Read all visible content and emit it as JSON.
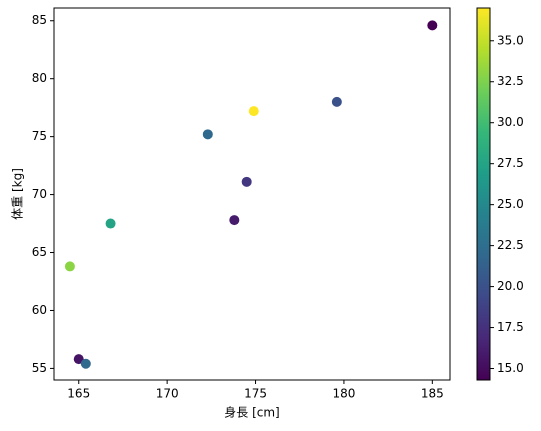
{
  "chart_data": {
    "type": "scatter",
    "xlabel": "身長 [cm]",
    "ylabel": "体重 [kg]",
    "x": [
      185.0,
      179.6,
      174.9,
      172.3,
      174.5,
      173.8,
      166.8,
      164.5,
      165.0,
      165.4
    ],
    "y": [
      84.6,
      78.0,
      77.2,
      75.2,
      71.1,
      67.8,
      67.5,
      63.8,
      55.8,
      55.4
    ],
    "c": [
      14.3,
      20.0,
      37.0,
      22.0,
      18.0,
      16.0,
      27.5,
      33.0,
      15.5,
      22.0
    ],
    "colormap": "viridis",
    "xlim": [
      163.6,
      186.0
    ],
    "xticks": [
      165,
      170,
      175,
      180,
      185
    ],
    "ylim": [
      54.0,
      86.1
    ],
    "yticks": [
      55,
      60,
      65,
      70,
      75,
      80,
      85
    ],
    "clim": [
      14.3,
      37.0
    ],
    "cticks": [
      {
        "value": 15,
        "label": "15.0"
      },
      {
        "value": 17.5,
        "label": "17.5"
      },
      {
        "value": 20,
        "label": "20.0"
      },
      {
        "value": 22.5,
        "label": "22.5"
      },
      {
        "value": 25,
        "label": "25.0"
      },
      {
        "value": 27.5,
        "label": "27.5"
      },
      {
        "value": 30,
        "label": "30.0"
      },
      {
        "value": 32.5,
        "label": "32.5"
      },
      {
        "value": 35,
        "label": "35.0"
      }
    ]
  }
}
